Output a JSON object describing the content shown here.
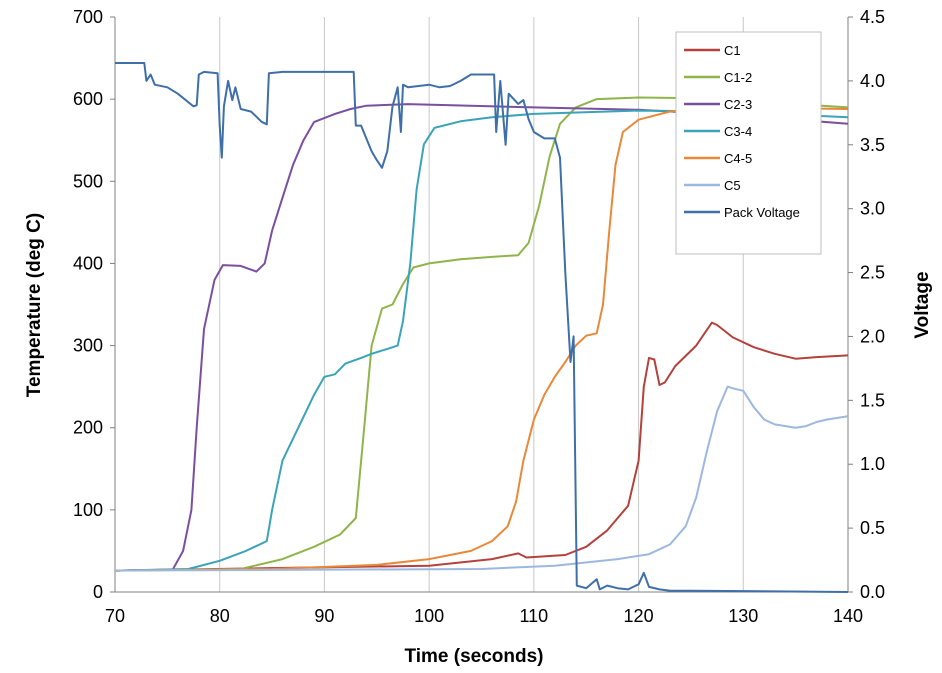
{
  "chart_data": {
    "type": "line",
    "title": "",
    "xlabel": "Time (seconds)",
    "ylabel_left": "Temperature (deg C)",
    "ylabel_right": "Voltage",
    "xlim": [
      70,
      140
    ],
    "ylim_left": [
      0,
      700
    ],
    "ylim_right": [
      0,
      4.5
    ],
    "x_ticks": [
      "70",
      "80",
      "90",
      "100",
      "110",
      "120",
      "130",
      "140"
    ],
    "y_ticks_left": [
      "0",
      "100",
      "200",
      "300",
      "400",
      "500",
      "600",
      "700"
    ],
    "y_ticks_right": [
      "0.0",
      "0.5",
      "1.0",
      "1.5",
      "2.0",
      "2.5",
      "3.0",
      "3.5",
      "4.0",
      "4.5"
    ],
    "grid": "vertical",
    "legend_position": "top-right",
    "series": [
      {
        "name": "C1",
        "axis": "left",
        "color": "#b5413c",
        "points": [
          [
            70,
            26
          ],
          [
            100,
            32
          ],
          [
            106,
            40
          ],
          [
            108.5,
            47
          ],
          [
            109.3,
            42
          ],
          [
            113,
            45
          ],
          [
            115,
            55
          ],
          [
            117,
            75
          ],
          [
            119,
            105
          ],
          [
            120,
            160
          ],
          [
            120.5,
            250
          ],
          [
            121,
            285
          ],
          [
            121.5,
            283
          ],
          [
            122,
            252
          ],
          [
            122.5,
            255
          ],
          [
            123.5,
            275
          ],
          [
            125.5,
            300
          ],
          [
            127,
            328
          ],
          [
            127.5,
            325
          ],
          [
            129,
            310
          ],
          [
            131,
            298
          ],
          [
            133,
            290
          ],
          [
            135,
            284
          ],
          [
            137,
            286
          ],
          [
            140,
            288
          ]
        ]
      },
      {
        "name": "C1-2",
        "axis": "left",
        "color": "#8fb54a",
        "points": [
          [
            70,
            26
          ],
          [
            82,
            28
          ],
          [
            86,
            40
          ],
          [
            89,
            55
          ],
          [
            91.5,
            70
          ],
          [
            93,
            90
          ],
          [
            93.8,
            200
          ],
          [
            94.5,
            300
          ],
          [
            95.5,
            345
          ],
          [
            96.5,
            350
          ],
          [
            97.5,
            375
          ],
          [
            98.5,
            395
          ],
          [
            100,
            400
          ],
          [
            103,
            405
          ],
          [
            106,
            408
          ],
          [
            108.5,
            410
          ],
          [
            109.5,
            425
          ],
          [
            110.5,
            470
          ],
          [
            111.5,
            530
          ],
          [
            112.5,
            570
          ],
          [
            114,
            590
          ],
          [
            116,
            600
          ],
          [
            120,
            602
          ],
          [
            126,
            601
          ],
          [
            140,
            590
          ]
        ]
      },
      {
        "name": "C2-3",
        "axis": "left",
        "color": "#7a4fa0",
        "points": [
          [
            70,
            26
          ],
          [
            75.5,
            27
          ],
          [
            76.5,
            50
          ],
          [
            77.3,
            100
          ],
          [
            77.8,
            200
          ],
          [
            78.5,
            320
          ],
          [
            79.5,
            380
          ],
          [
            80.3,
            398
          ],
          [
            82,
            397
          ],
          [
            83.5,
            390
          ],
          [
            84.3,
            400
          ],
          [
            85,
            440
          ],
          [
            86,
            480
          ],
          [
            87,
            520
          ],
          [
            88,
            550
          ],
          [
            89,
            572
          ],
          [
            91,
            582
          ],
          [
            92.5,
            588
          ],
          [
            94,
            592
          ],
          [
            98,
            594
          ],
          [
            110,
            590
          ],
          [
            120,
            587
          ],
          [
            130,
            580
          ],
          [
            140,
            570
          ]
        ]
      },
      {
        "name": "C3-4",
        "axis": "left",
        "color": "#3aa3b8",
        "points": [
          [
            70,
            26
          ],
          [
            77,
            28
          ],
          [
            80,
            38
          ],
          [
            82.5,
            50
          ],
          [
            84.5,
            62
          ],
          [
            85,
            100
          ],
          [
            86,
            160
          ],
          [
            87.5,
            200
          ],
          [
            89,
            240
          ],
          [
            90,
            262
          ],
          [
            91,
            265
          ],
          [
            92,
            278
          ],
          [
            93.5,
            285
          ],
          [
            94.5,
            290
          ],
          [
            96,
            296
          ],
          [
            97,
            300
          ],
          [
            97.5,
            330
          ],
          [
            98.2,
            400
          ],
          [
            98.8,
            490
          ],
          [
            99.5,
            545
          ],
          [
            100.5,
            565
          ],
          [
            103,
            573
          ],
          [
            106,
            578
          ],
          [
            110,
            582
          ],
          [
            120,
            586
          ],
          [
            128,
            585
          ],
          [
            140,
            578
          ]
        ]
      },
      {
        "name": "C4-5",
        "axis": "left",
        "color": "#e8893a",
        "points": [
          [
            70,
            26
          ],
          [
            85,
            28
          ],
          [
            95,
            33
          ],
          [
            100,
            40
          ],
          [
            104,
            50
          ],
          [
            106,
            62
          ],
          [
            107.5,
            80
          ],
          [
            108.3,
            110
          ],
          [
            109,
            160
          ],
          [
            110,
            210
          ],
          [
            111,
            240
          ],
          [
            112,
            262
          ],
          [
            113,
            280
          ],
          [
            114,
            300
          ],
          [
            115,
            312
          ],
          [
            116,
            315
          ],
          [
            116.6,
            350
          ],
          [
            117.2,
            440
          ],
          [
            117.8,
            520
          ],
          [
            118.5,
            560
          ],
          [
            120,
            575
          ],
          [
            123,
            585
          ],
          [
            128,
            590
          ],
          [
            140,
            588
          ]
        ]
      },
      {
        "name": "C5",
        "axis": "left",
        "color": "#9db8de",
        "points": [
          [
            70,
            26
          ],
          [
            105,
            28
          ],
          [
            112,
            32
          ],
          [
            118,
            40
          ],
          [
            121,
            46
          ],
          [
            123,
            58
          ],
          [
            124.5,
            80
          ],
          [
            125.5,
            115
          ],
          [
            126.5,
            170
          ],
          [
            127.5,
            220
          ],
          [
            128.5,
            250
          ],
          [
            129,
            248
          ],
          [
            130,
            245
          ],
          [
            131,
            225
          ],
          [
            132,
            210
          ],
          [
            133,
            204
          ],
          [
            135,
            200
          ],
          [
            136,
            202
          ],
          [
            137,
            207
          ],
          [
            138,
            210
          ],
          [
            140,
            214
          ]
        ]
      },
      {
        "name": "Pack Voltage",
        "axis": "right",
        "color": "#3f6fa9",
        "points": [
          [
            70,
            4.14
          ],
          [
            72.8,
            4.14
          ],
          [
            73,
            4.0
          ],
          [
            73.4,
            4.05
          ],
          [
            73.8,
            3.97
          ],
          [
            75,
            3.95
          ],
          [
            76,
            3.9
          ],
          [
            77.5,
            3.8
          ],
          [
            77.8,
            3.81
          ],
          [
            78,
            4.05
          ],
          [
            78.5,
            4.07
          ],
          [
            79.8,
            4.06
          ],
          [
            80,
            3.65
          ],
          [
            80.2,
            3.4
          ],
          [
            80.4,
            3.8
          ],
          [
            80.8,
            4.0
          ],
          [
            81.2,
            3.85
          ],
          [
            81.5,
            3.95
          ],
          [
            82,
            3.78
          ],
          [
            83,
            3.76
          ],
          [
            84,
            3.68
          ],
          [
            84.5,
            3.66
          ],
          [
            84.7,
            4.06
          ],
          [
            86,
            4.07
          ],
          [
            88,
            4.07
          ],
          [
            90,
            4.07
          ],
          [
            92.8,
            4.07
          ],
          [
            93,
            3.65
          ],
          [
            93.5,
            3.65
          ],
          [
            94,
            3.55
          ],
          [
            94.5,
            3.45
          ],
          [
            95,
            3.38
          ],
          [
            95.5,
            3.32
          ],
          [
            96,
            3.45
          ],
          [
            96.5,
            3.8
          ],
          [
            97,
            3.95
          ],
          [
            97.3,
            3.6
          ],
          [
            97.5,
            3.97
          ],
          [
            98,
            3.95
          ],
          [
            99,
            3.96
          ],
          [
            100,
            3.97
          ],
          [
            101,
            3.95
          ],
          [
            102,
            3.96
          ],
          [
            103,
            4.0
          ],
          [
            104,
            4.05
          ],
          [
            106.2,
            4.05
          ],
          [
            106.4,
            3.6
          ],
          [
            106.8,
            4.0
          ],
          [
            107.3,
            3.5
          ],
          [
            107.6,
            3.9
          ],
          [
            108.5,
            3.82
          ],
          [
            109,
            3.85
          ],
          [
            109.5,
            3.7
          ],
          [
            110,
            3.6
          ],
          [
            111,
            3.55
          ],
          [
            112,
            3.55
          ],
          [
            112.5,
            3.4
          ],
          [
            113,
            2.5
          ],
          [
            113.5,
            1.8
          ],
          [
            113.8,
            2.0
          ],
          [
            114.1,
            0.05
          ],
          [
            115,
            0.03
          ],
          [
            116,
            0.1
          ],
          [
            116.3,
            0.02
          ],
          [
            117,
            0.05
          ],
          [
            118,
            0.03
          ],
          [
            119,
            0.02
          ],
          [
            120,
            0.06
          ],
          [
            120.5,
            0.15
          ],
          [
            121,
            0.04
          ],
          [
            122,
            0.02
          ],
          [
            123,
            0.01
          ],
          [
            125,
            0.01
          ],
          [
            140,
            0.0
          ]
        ]
      }
    ]
  }
}
